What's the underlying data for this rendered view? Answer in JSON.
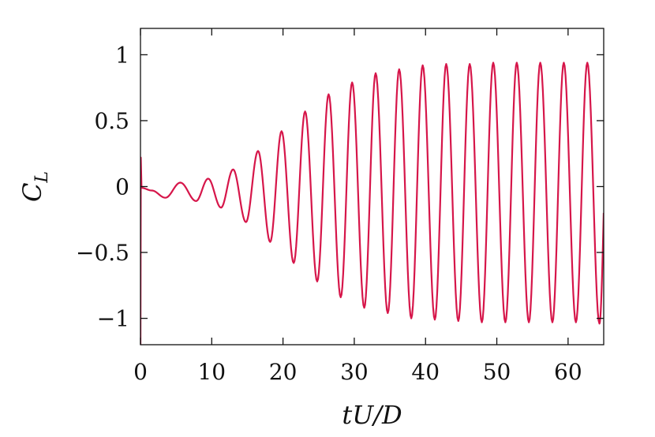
{
  "chart_data": {
    "type": "line",
    "xlabel": "tU/D",
    "ylabel_main": "C",
    "ylabel_sub": "L",
    "xlim": [
      0,
      65
    ],
    "ylim": [
      -1.2,
      1.2
    ],
    "x_ticks": [
      0,
      10,
      20,
      30,
      40,
      50,
      60
    ],
    "x_tick_labels": [
      "0",
      "10",
      "20",
      "30",
      "40",
      "50",
      "60"
    ],
    "y_ticks": [
      -1,
      -0.5,
      0,
      0.5,
      1
    ],
    "y_tick_labels": [
      "−1",
      "−0.5",
      "0",
      "0.5",
      "1"
    ],
    "grid": false,
    "series": [
      {
        "color": "#d6164a",
        "peaks": [
          {
            "x": 1.6,
            "y": -0.03
          },
          {
            "x": 3.5,
            "y": -0.085
          },
          {
            "x": 5.6,
            "y": 0.03
          },
          {
            "x": 7.8,
            "y": -0.11
          },
          {
            "x": 9.5,
            "y": 0.06
          },
          {
            "x": 11.3,
            "y": -0.16
          },
          {
            "x": 13.0,
            "y": 0.13
          },
          {
            "x": 14.8,
            "y": -0.27
          },
          {
            "x": 16.5,
            "y": 0.27
          },
          {
            "x": 18.2,
            "y": -0.42
          },
          {
            "x": 19.8,
            "y": 0.42
          },
          {
            "x": 21.5,
            "y": -0.58
          },
          {
            "x": 23.1,
            "y": 0.57
          },
          {
            "x": 24.8,
            "y": -0.72
          },
          {
            "x": 26.4,
            "y": 0.7
          },
          {
            "x": 28.1,
            "y": -0.84
          },
          {
            "x": 29.7,
            "y": 0.79
          },
          {
            "x": 31.4,
            "y": -0.92
          },
          {
            "x": 33.0,
            "y": 0.86
          },
          {
            "x": 34.7,
            "y": -0.96
          },
          {
            "x": 36.3,
            "y": 0.89
          },
          {
            "x": 38.0,
            "y": -1.0
          },
          {
            "x": 39.6,
            "y": 0.92
          },
          {
            "x": 41.3,
            "y": -1.01
          },
          {
            "x": 42.9,
            "y": 0.93
          },
          {
            "x": 44.6,
            "y": -1.02
          },
          {
            "x": 46.2,
            "y": 0.93
          },
          {
            "x": 47.9,
            "y": -1.03
          },
          {
            "x": 49.5,
            "y": 0.94
          },
          {
            "x": 51.2,
            "y": -1.03
          },
          {
            "x": 52.8,
            "y": 0.94
          },
          {
            "x": 54.5,
            "y": -1.03
          },
          {
            "x": 56.1,
            "y": 0.94
          },
          {
            "x": 57.8,
            "y": -1.03
          },
          {
            "x": 59.4,
            "y": 0.94
          },
          {
            "x": 61.1,
            "y": -1.03
          },
          {
            "x": 62.7,
            "y": 0.94
          },
          {
            "x": 64.4,
            "y": -1.04
          }
        ],
        "start": [
          {
            "x": 0.0,
            "y": -1.2
          },
          {
            "x": 0.05,
            "y": 0.22
          },
          {
            "x": 0.15,
            "y": -0.01
          }
        ],
        "end": {
          "x": 65.0,
          "y": -0.2
        }
      }
    ]
  }
}
